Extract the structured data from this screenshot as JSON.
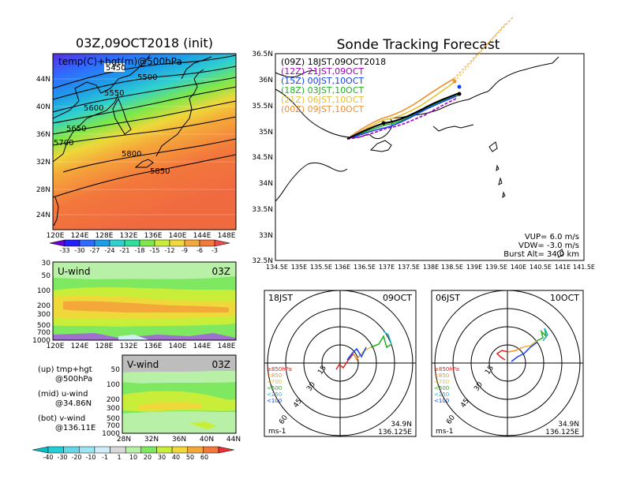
{
  "titles": {
    "init_map": "03Z,09OCT2018 (init)",
    "forecast": "Sonde Tracking Forecast"
  },
  "init_map": {
    "label": "temp(C)+hgt(m)@500hPa",
    "contour_labels": [
      "5450",
      "5500",
      "5550",
      "5600",
      "5650",
      "5700",
      "5800",
      "5850"
    ],
    "lat_ticks": [
      "44N",
      "40N",
      "36N",
      "32N",
      "28N",
      "24N"
    ],
    "lon_ticks": [
      "120E",
      "124E",
      "128E",
      "132E",
      "136E",
      "140E",
      "144E",
      "148E"
    ]
  },
  "temp_colorbar": {
    "labels": [
      "-33",
      "-30",
      "-27",
      "-24",
      "-21",
      "-18",
      "-15",
      "-12",
      "-9",
      "-6",
      "-3"
    ],
    "colors": [
      "#6a00d0",
      "#2020ff",
      "#2f6bff",
      "#1e9ee8",
      "#2fd0d0",
      "#2fe09a",
      "#7ee84a",
      "#c8ee3a",
      "#eed83a",
      "#f5a83a",
      "#f3783c",
      "#ef4a4a"
    ]
  },
  "uwind_panel": {
    "label": "U-wind",
    "time": "03Z",
    "p_ticks": [
      "30",
      "50",
      "100",
      "200",
      "300",
      "500",
      "700",
      "1000"
    ],
    "lon_ticks": [
      "120E",
      "124E",
      "128E",
      "132E",
      "136E",
      "140E",
      "144E",
      "148E"
    ]
  },
  "vwind_panel": {
    "label": "V-wind",
    "time": "03Z",
    "p_ticks": [
      "50",
      "100",
      "200",
      "300",
      "500",
      "700",
      "1000"
    ],
    "lat_ticks": [
      "28N",
      "32N",
      "36N",
      "40N",
      "44N"
    ]
  },
  "legend_notes": [
    {
      "head": "(up) tmp+hgt",
      "sub": "@500hPa"
    },
    {
      "head": "(mid) u-wind",
      "sub": "@34.86N"
    },
    {
      "head": "(bot) v-wind",
      "sub": "@136.11E"
    }
  ],
  "wind_colorbar": {
    "labels": [
      "-40",
      "-30",
      "-20",
      "-10",
      "-1",
      "1",
      "10",
      "20",
      "30",
      "40",
      "50",
      "60"
    ],
    "colors": [
      "#00c0c8",
      "#23cfd6",
      "#63d9e8",
      "#9ce6f2",
      "#cfeef8",
      "#d8d8d8",
      "#b8f0a8",
      "#7de860",
      "#c8ee3a",
      "#eed83a",
      "#f5a83a",
      "#f3783c",
      "#ef3030"
    ]
  },
  "track_map": {
    "lat_ticks": [
      "36.5N",
      "36N",
      "35.5N",
      "35N",
      "34.5N",
      "34N",
      "33.5N",
      "33N",
      "32.5N"
    ],
    "lon_ticks": [
      "134.5E",
      "135E",
      "135.5E",
      "136E",
      "136.5E",
      "137E",
      "137.5E",
      "138E",
      "138.5E",
      "139E",
      "139.5E",
      "140E",
      "140.5E",
      "141E",
      "141.5E"
    ],
    "launches": [
      {
        "utc": "(09Z)",
        "local": "18JST,09OCT2018",
        "color": "#000000"
      },
      {
        "utc": "(12Z)",
        "local": "21JST,09OCT",
        "color": "#a000c0"
      },
      {
        "utc": "(15Z)",
        "local": "00JST,10OCT",
        "color": "#1040ff"
      },
      {
        "utc": "(18Z)",
        "local": "03JST,10OCT",
        "color": "#20b020"
      },
      {
        "utc": "(21Z)",
        "local": "06JST,10OCT",
        "color": "#e8c030"
      },
      {
        "utc": "(00Z)",
        "local": "09JST,10OCT",
        "color": "#f09030"
      }
    ],
    "params": {
      "vup": "VUP=  6.0 m/s",
      "vdw": "VDW= -3.0 m/s",
      "burst": "Burst Alt= 34.0 km"
    }
  },
  "hodo_left": {
    "time": "18JST",
    "date": "09OCT",
    "lat": "34.9N",
    "lon": "136.125E",
    "unit": "ms-1"
  },
  "hodo_right": {
    "time": "06JST",
    "date": "10OCT",
    "lat": "34.9N",
    "lon": "136.125E",
    "unit": "ms-1"
  },
  "hodo_rings": [
    "15",
    "30",
    "45",
    "60"
  ],
  "hodo_levels": [
    {
      "label": "≥850hPa",
      "color": "#e02020"
    },
    {
      "label": "<850",
      "color": "#f09030"
    },
    {
      "label": "<700",
      "color": "#e8c030"
    },
    {
      "label": "<500",
      "color": "#20b020"
    },
    {
      "label": "<250",
      "color": "#20b0d0"
    },
    {
      "label": "<100",
      "color": "#1040ff"
    }
  ]
}
